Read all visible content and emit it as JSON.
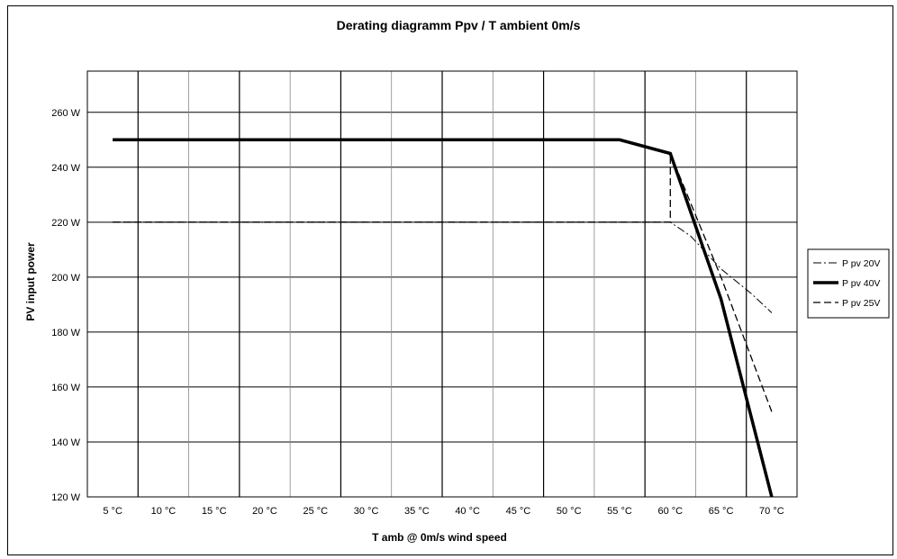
{
  "chart_data": {
    "type": "line",
    "title": "Derating diagramm Ppv / T ambient 0m/s",
    "xlabel": "T amb  @  0m/s wind speed",
    "ylabel": "PV input power",
    "categories": [
      "5 °C",
      "10 °C",
      "15 °C",
      "20 °C",
      "25 °C",
      "30 °C",
      "35 °C",
      "40 °C",
      "45 °C",
      "50 °C",
      "55 °C",
      "60 °C",
      "65 °C",
      "70 °C"
    ],
    "xlim": [
      2.5,
      72.5
    ],
    "ylim": [
      120,
      275
    ],
    "yticks": [
      120,
      140,
      160,
      180,
      200,
      220,
      240,
      260
    ],
    "ytick_labels": [
      "120 W",
      "140 W",
      "160 W",
      "180 W",
      "200 W",
      "220 W",
      "240 W",
      "260 W"
    ],
    "grid": true,
    "legend_position": "right",
    "series": [
      {
        "name": "P pv 20V",
        "style": "dash-dot",
        "color": "#000000",
        "points": [
          [
            5,
            220
          ],
          [
            60,
            220
          ],
          [
            62,
            215
          ],
          [
            65,
            203
          ],
          [
            68,
            194
          ],
          [
            70,
            187
          ]
        ]
      },
      {
        "name": "P pv 40V",
        "style": "solid-thick",
        "color": "#000000",
        "points": [
          [
            5,
            250
          ],
          [
            55,
            250
          ],
          [
            60,
            245
          ],
          [
            65,
            192
          ],
          [
            70,
            120
          ]
        ]
      },
      {
        "name": "P pv 25V",
        "style": "dashed",
        "color": "#000000",
        "points": [
          [
            5,
            220
          ],
          [
            60,
            220
          ],
          [
            60,
            245
          ],
          [
            65,
            200
          ],
          [
            70,
            151
          ]
        ]
      }
    ]
  }
}
